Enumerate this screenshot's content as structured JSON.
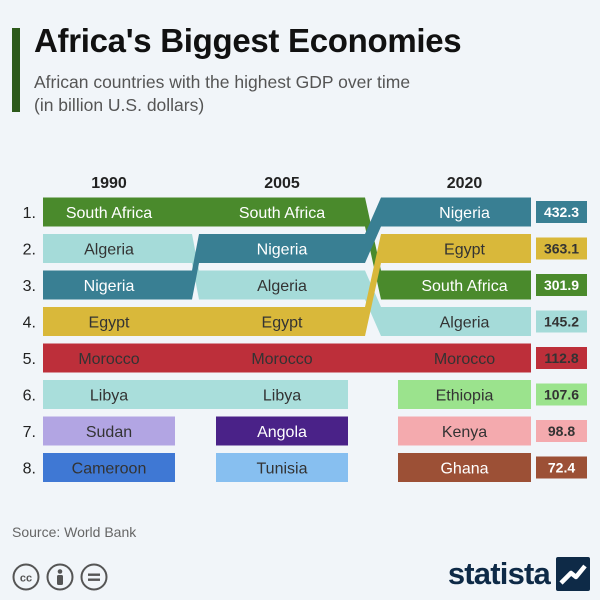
{
  "header": {
    "title": "Africa's Biggest Economies",
    "subtitle_line1": "African countries with the highest GDP over time",
    "subtitle_line2": "(in billion U.S. dollars)"
  },
  "chart_data": {
    "type": "table",
    "title": "Africa's Biggest Economies",
    "subtitle": "African countries with the highest GDP over time (in billion U.S. dollars)",
    "years": [
      "1990",
      "2005",
      "2020"
    ],
    "ranks": [
      "1.",
      "2.",
      "3.",
      "4.",
      "5.",
      "6.",
      "7.",
      "8."
    ],
    "rankings": {
      "1990": [
        "South Africa",
        "Algeria",
        "Nigeria",
        "Egypt",
        "Morocco",
        "Libya",
        "Sudan",
        "Cameroon"
      ],
      "2005": [
        "South Africa",
        "Nigeria",
        "Algeria",
        "Egypt",
        "Morocco",
        "Libya",
        "Angola",
        "Tunisia"
      ],
      "2020": [
        "Nigeria",
        "Egypt",
        "South Africa",
        "Algeria",
        "Morocco",
        "Ethiopia",
        "Kenya",
        "Ghana"
      ]
    },
    "values_2020": [
      "432.3",
      "363.1",
      "301.9",
      "145.2",
      "112.8",
      "107.6",
      "98.8",
      "72.4"
    ],
    "colors": {
      "South Africa": "#4a8a2c",
      "Algeria": "#a5dbd9",
      "Nigeria": "#397f93",
      "Egypt": "#d9b83a",
      "Morocco": "#bd2f3a",
      "Libya": "#a9dedb",
      "Sudan": "#b2a5e3",
      "Cameroon": "#3f78d4",
      "Angola": "#4a2288",
      "Tunisia": "#87bff0",
      "Ethiopia": "#9be38d",
      "Kenya": "#f4aaae",
      "Ghana": "#9c5036"
    },
    "label_colors": {
      "South Africa": "#ffffff",
      "Algeria": "#333333",
      "Nigeria": "#ffffff",
      "Egypt": "#333333",
      "Morocco": "#333333",
      "Libya": "#333333",
      "Sudan": "#333333",
      "Cameroon": "#333333",
      "Angola": "#ffffff",
      "Tunisia": "#333333",
      "Ethiopia": "#333333",
      "Kenya": "#333333",
      "Ghana": "#ffffff"
    }
  },
  "footer": {
    "source": "Source: World Bank",
    "brand": "statista"
  }
}
